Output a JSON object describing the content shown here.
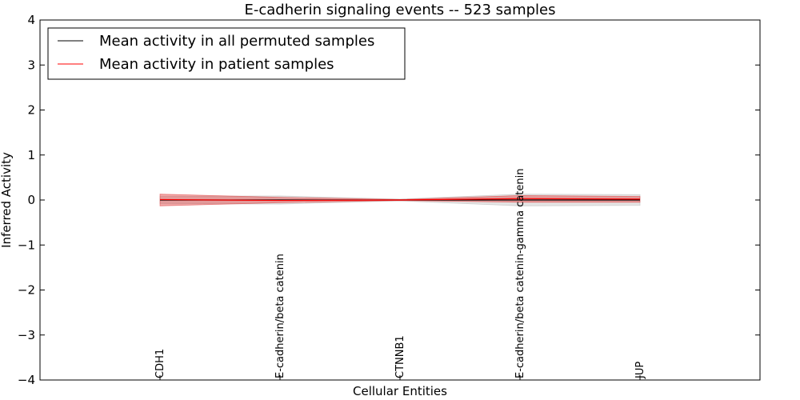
{
  "chart_data": {
    "type": "line",
    "title": "E-cadherin signaling events -- 523 samples",
    "xlabel": "Cellular Entities",
    "ylabel": "Inferred Activity",
    "ylim": [
      -4,
      4
    ],
    "yticks": [
      4,
      3,
      2,
      1,
      0,
      -1,
      -2,
      -3,
      -4
    ],
    "ytick_labels": [
      "4",
      "3",
      "2",
      "1",
      "0",
      "−1",
      "−2",
      "−3",
      "−4"
    ],
    "xlim": [
      -1,
      5
    ],
    "categories": [
      "CDH1",
      "E-cadherin/beta catenin",
      "CTNNB1",
      "E-cadherin/beta catenin-gamma catenin",
      "JUP"
    ],
    "grid": false,
    "legend_position": "top-left",
    "series": [
      {
        "name": "Mean activity in all permuted samples",
        "color": "#000000",
        "band_color": "#bbbbbb",
        "values": [
          0.0,
          0.0,
          0.0,
          0.0,
          0.0
        ],
        "lower": [
          -0.08,
          -0.09,
          -0.02,
          -0.13,
          -0.12
        ],
        "upper": [
          0.08,
          0.09,
          0.02,
          0.13,
          0.12
        ]
      },
      {
        "name": "Mean activity in patient samples",
        "color": "#ff0000",
        "band_color": "#e04040",
        "values": [
          0.01,
          -0.01,
          0.0,
          0.03,
          0.02
        ],
        "lower": [
          -0.13,
          -0.06,
          -0.01,
          -0.05,
          -0.05
        ],
        "upper": [
          0.13,
          0.06,
          0.01,
          0.1,
          0.08
        ]
      }
    ]
  }
}
